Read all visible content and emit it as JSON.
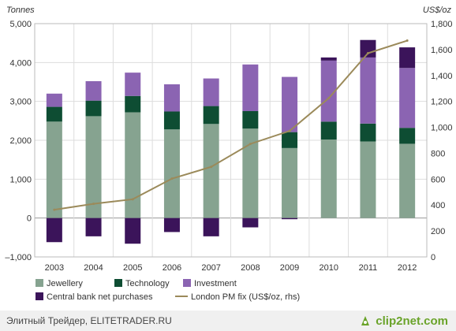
{
  "chart_data": {
    "type": "bar",
    "stacked": true,
    "categories": [
      "2003",
      "2004",
      "2005",
      "2006",
      "2007",
      "2008",
      "2009",
      "2010",
      "2011",
      "2012"
    ],
    "series": [
      {
        "name": "Jewellery",
        "color": "#86a390",
        "values": [
          2480,
          2620,
          2720,
          2280,
          2420,
          2300,
          1800,
          2020,
          1970,
          1910
        ]
      },
      {
        "name": "Technology",
        "color": "#0e4d33",
        "values": [
          380,
          400,
          420,
          460,
          460,
          450,
          410,
          460,
          460,
          410
        ]
      },
      {
        "name": "Investment",
        "color": "#8b64b2",
        "values": [
          340,
          500,
          600,
          700,
          710,
          1200,
          1420,
          1570,
          1700,
          1540
        ]
      },
      {
        "name": "Central bank net purchases",
        "color": "#3b145a",
        "values": [
          -620,
          -470,
          -660,
          -360,
          -470,
          -240,
          -30,
          80,
          450,
          530
        ]
      }
    ],
    "line_series": {
      "name": "London PM fix (US$/oz, rhs)",
      "color": "#9b8a5a",
      "axis": "right",
      "values": [
        364,
        410,
        445,
        604,
        695,
        872,
        972,
        1225,
        1572,
        1669
      ]
    },
    "left_axis": {
      "label": "Tonnes",
      "ylim": [
        -1000,
        5000
      ],
      "ticks": [
        -1000,
        0,
        1000,
        2000,
        3000,
        4000,
        5000
      ],
      "tick_labels": [
        "–1,000",
        "0",
        "1,000",
        "2,000",
        "3,000",
        "4,000",
        "5,000"
      ]
    },
    "right_axis": {
      "label": "US$/oz",
      "ylim": [
        0,
        1800
      ],
      "ticks": [
        0,
        200,
        400,
        600,
        800,
        1000,
        1200,
        1400,
        1600,
        1800
      ],
      "tick_labels": [
        "0",
        "200",
        "400",
        "600",
        "800",
        "1,000",
        "1,200",
        "1,400",
        "1,600",
        "1,800"
      ]
    },
    "grid": true,
    "legend_placement": "bottom"
  },
  "footer": {
    "caption": "Элитный Трейдер, ELITETRADER.RU",
    "logo_text": "clip2net.com",
    "logo_color": "#6aa329"
  }
}
